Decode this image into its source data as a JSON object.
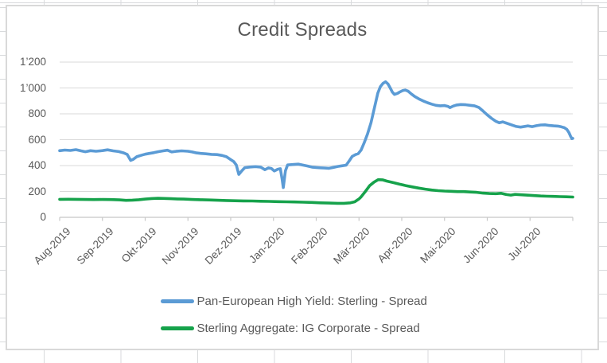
{
  "chart_data": {
    "type": "line",
    "title": "Credit Spreads",
    "xlabel": "",
    "ylabel": "",
    "grid": true,
    "legend_position": "bottom",
    "x_axis": {
      "unit": "months (0 = Aug-2019, 12 = Aug-2020)",
      "categories": [
        "Aug-2019",
        "Sep-2019",
        "Okt-2019",
        "Nov-2019",
        "Dez-2019",
        "Jan-2020",
        "Feb-2020",
        "Mär-2020",
        "Apr-2020",
        "Mai-2020",
        "Jun-2020",
        "Jul-2020"
      ],
      "tick_count": 13
    },
    "y_axis": {
      "min": 0,
      "max": 1200,
      "step": 200,
      "tick_labels": [
        "0",
        "200",
        "400",
        "600",
        "800",
        "1’000",
        "1’200"
      ]
    },
    "series": [
      {
        "name": "Pan-European High Yield: Sterling - Spread",
        "color": "#5B9BD5",
        "points": [
          [
            0,
            515
          ],
          [
            0.12,
            520
          ],
          [
            0.25,
            517
          ],
          [
            0.38,
            523
          ],
          [
            0.5,
            514
          ],
          [
            0.6,
            507
          ],
          [
            0.72,
            515
          ],
          [
            0.85,
            511
          ],
          [
            1,
            516
          ],
          [
            1.12,
            522
          ],
          [
            1.25,
            514
          ],
          [
            1.38,
            508
          ],
          [
            1.5,
            498
          ],
          [
            1.58,
            486
          ],
          [
            1.66,
            440
          ],
          [
            1.72,
            448
          ],
          [
            1.8,
            468
          ],
          [
            1.9,
            479
          ],
          [
            2,
            488
          ],
          [
            2.1,
            494
          ],
          [
            2.2,
            500
          ],
          [
            2.3,
            507
          ],
          [
            2.42,
            514
          ],
          [
            2.52,
            519
          ],
          [
            2.62,
            506
          ],
          [
            2.72,
            510
          ],
          [
            2.85,
            514
          ],
          [
            3,
            511
          ],
          [
            3.1,
            505
          ],
          [
            3.2,
            498
          ],
          [
            3.3,
            494
          ],
          [
            3.42,
            491
          ],
          [
            3.55,
            487
          ],
          [
            3.68,
            485
          ],
          [
            3.8,
            478
          ],
          [
            3.9,
            468
          ],
          [
            4,
            446
          ],
          [
            4.07,
            431
          ],
          [
            4.13,
            405
          ],
          [
            4.19,
            332
          ],
          [
            4.26,
            360
          ],
          [
            4.33,
            384
          ],
          [
            4.45,
            389
          ],
          [
            4.58,
            392
          ],
          [
            4.7,
            388
          ],
          [
            4.8,
            368
          ],
          [
            4.88,
            382
          ],
          [
            4.95,
            378
          ],
          [
            5.02,
            358
          ],
          [
            5.1,
            372
          ],
          [
            5.16,
            376
          ],
          [
            5.2,
            300
          ],
          [
            5.23,
            230
          ],
          [
            5.28,
            360
          ],
          [
            5.33,
            405
          ],
          [
            5.45,
            408
          ],
          [
            5.58,
            411
          ],
          [
            5.7,
            403
          ],
          [
            5.8,
            396
          ],
          [
            5.9,
            388
          ],
          [
            6,
            385
          ],
          [
            6.1,
            383
          ],
          [
            6.2,
            381
          ],
          [
            6.3,
            379
          ],
          [
            6.4,
            386
          ],
          [
            6.5,
            393
          ],
          [
            6.6,
            398
          ],
          [
            6.7,
            403
          ],
          [
            6.78,
            440
          ],
          [
            6.84,
            470
          ],
          [
            6.92,
            485
          ],
          [
            6.98,
            492
          ],
          [
            7.05,
            520
          ],
          [
            7.12,
            575
          ],
          [
            7.2,
            645
          ],
          [
            7.28,
            730
          ],
          [
            7.36,
            845
          ],
          [
            7.44,
            960
          ],
          [
            7.5,
            1010
          ],
          [
            7.56,
            1035
          ],
          [
            7.62,
            1048
          ],
          [
            7.68,
            1030
          ],
          [
            7.73,
            1000
          ],
          [
            7.78,
            968
          ],
          [
            7.83,
            950
          ],
          [
            7.9,
            958
          ],
          [
            7.95,
            968
          ],
          [
            8.02,
            980
          ],
          [
            8.08,
            984
          ],
          [
            8.15,
            975
          ],
          [
            8.22,
            955
          ],
          [
            8.3,
            935
          ],
          [
            8.4,
            916
          ],
          [
            8.5,
            900
          ],
          [
            8.6,
            886
          ],
          [
            8.7,
            875
          ],
          [
            8.8,
            866
          ],
          [
            8.9,
            862
          ],
          [
            9,
            864
          ],
          [
            9.08,
            858
          ],
          [
            9.13,
            848
          ],
          [
            9.2,
            860
          ],
          [
            9.28,
            868
          ],
          [
            9.38,
            872
          ],
          [
            9.5,
            870
          ],
          [
            9.6,
            866
          ],
          [
            9.7,
            862
          ],
          [
            9.8,
            850
          ],
          [
            9.9,
            822
          ],
          [
            10,
            792
          ],
          [
            10.1,
            765
          ],
          [
            10.2,
            742
          ],
          [
            10.28,
            731
          ],
          [
            10.36,
            738
          ],
          [
            10.44,
            729
          ],
          [
            10.55,
            716
          ],
          [
            10.68,
            702
          ],
          [
            10.78,
            697
          ],
          [
            10.88,
            703
          ],
          [
            10.95,
            707
          ],
          [
            11.05,
            701
          ],
          [
            11.15,
            708
          ],
          [
            11.25,
            714
          ],
          [
            11.35,
            715
          ],
          [
            11.45,
            710
          ],
          [
            11.55,
            707
          ],
          [
            11.65,
            705
          ],
          [
            11.73,
            700
          ],
          [
            11.8,
            693
          ],
          [
            11.86,
            680
          ],
          [
            11.91,
            655
          ],
          [
            11.95,
            625
          ],
          [
            11.98,
            608
          ],
          [
            12,
            610
          ]
        ]
      },
      {
        "name": "Sterling Aggregate: IG Corporate - Spread",
        "color": "#16A24B",
        "points": [
          [
            0,
            139
          ],
          [
            0.2,
            140
          ],
          [
            0.4,
            139
          ],
          [
            0.6,
            138
          ],
          [
            0.8,
            137
          ],
          [
            1,
            138
          ],
          [
            1.2,
            137
          ],
          [
            1.4,
            135
          ],
          [
            1.55,
            131
          ],
          [
            1.7,
            133
          ],
          [
            1.85,
            136
          ],
          [
            2,
            141
          ],
          [
            2.15,
            145
          ],
          [
            2.3,
            147
          ],
          [
            2.45,
            146
          ],
          [
            2.6,
            144
          ],
          [
            2.75,
            142
          ],
          [
            2.9,
            141
          ],
          [
            3.1,
            138
          ],
          [
            3.3,
            136
          ],
          [
            3.5,
            134
          ],
          [
            3.7,
            132
          ],
          [
            3.9,
            130
          ],
          [
            4.1,
            128
          ],
          [
            4.3,
            127
          ],
          [
            4.5,
            126
          ],
          [
            4.7,
            124
          ],
          [
            4.9,
            123
          ],
          [
            5.1,
            121
          ],
          [
            5.3,
            120
          ],
          [
            5.5,
            119
          ],
          [
            5.7,
            117
          ],
          [
            5.9,
            115
          ],
          [
            6.1,
            112
          ],
          [
            6.3,
            110
          ],
          [
            6.5,
            108
          ],
          [
            6.65,
            108
          ],
          [
            6.8,
            112
          ],
          [
            6.9,
            120
          ],
          [
            7,
            142
          ],
          [
            7.05,
            158
          ],
          [
            7.15,
            200
          ],
          [
            7.25,
            245
          ],
          [
            7.35,
            272
          ],
          [
            7.45,
            291
          ],
          [
            7.55,
            290
          ],
          [
            7.65,
            280
          ],
          [
            7.8,
            268
          ],
          [
            7.95,
            256
          ],
          [
            8.1,
            245
          ],
          [
            8.25,
            235
          ],
          [
            8.4,
            226
          ],
          [
            8.55,
            218
          ],
          [
            8.7,
            211
          ],
          [
            8.85,
            206
          ],
          [
            9,
            203
          ],
          [
            9.15,
            201
          ],
          [
            9.3,
            199
          ],
          [
            9.45,
            199
          ],
          [
            9.6,
            196
          ],
          [
            9.75,
            193
          ],
          [
            9.9,
            187
          ],
          [
            10.05,
            184
          ],
          [
            10.2,
            183
          ],
          [
            10.32,
            186
          ],
          [
            10.45,
            176
          ],
          [
            10.55,
            172
          ],
          [
            10.65,
            177
          ],
          [
            10.8,
            174
          ],
          [
            10.95,
            171
          ],
          [
            11.1,
            168
          ],
          [
            11.25,
            165
          ],
          [
            11.4,
            163
          ],
          [
            11.55,
            162
          ],
          [
            11.7,
            160
          ],
          [
            11.85,
            159
          ],
          [
            12,
            157
          ]
        ]
      }
    ]
  }
}
